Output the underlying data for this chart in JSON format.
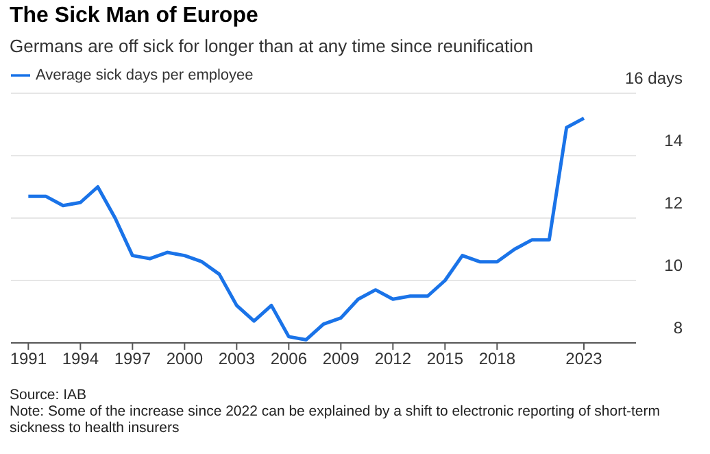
{
  "chart_data": {
    "type": "line",
    "title": "The Sick Man of Europe",
    "subtitle": "Germans are off sick for longer than at any time since reunification",
    "x": [
      1991,
      1992,
      1993,
      1994,
      1995,
      1996,
      1997,
      1998,
      1999,
      2000,
      2001,
      2002,
      2003,
      2004,
      2005,
      2006,
      2007,
      2008,
      2009,
      2010,
      2011,
      2012,
      2013,
      2014,
      2015,
      2016,
      2017,
      2018,
      2019,
      2020,
      2021,
      2022,
      2023
    ],
    "series": [
      {
        "name": "Average sick days per employee",
        "color": "#1a73e8",
        "values": [
          12.7,
          12.7,
          12.4,
          12.5,
          13.0,
          12.0,
          10.8,
          10.7,
          10.9,
          10.8,
          10.6,
          10.2,
          9.2,
          8.7,
          9.2,
          8.2,
          8.1,
          8.6,
          8.8,
          9.4,
          9.7,
          9.4,
          9.5,
          9.5,
          10.0,
          10.8,
          10.6,
          10.6,
          11.0,
          11.3,
          11.3,
          14.9,
          15.2
        ]
      }
    ],
    "xlim": [
      1990,
      2026
    ],
    "xticks": [
      1991,
      1994,
      1997,
      2000,
      2003,
      2006,
      2009,
      2012,
      2015,
      2018,
      2023
    ],
    "ylim": [
      8,
      16
    ],
    "yticks": [
      8,
      10,
      12,
      14,
      {
        "value": 16,
        "label": "16 days"
      }
    ],
    "grid": "y",
    "legend": "top left",
    "marker": "none",
    "line_style": "solid",
    "annotations": [
      "Source: IAB",
      "Note: Some of the increase since 2022 can be explained by a shift to electronic reporting of short-term sickness to health insurers"
    ]
  }
}
